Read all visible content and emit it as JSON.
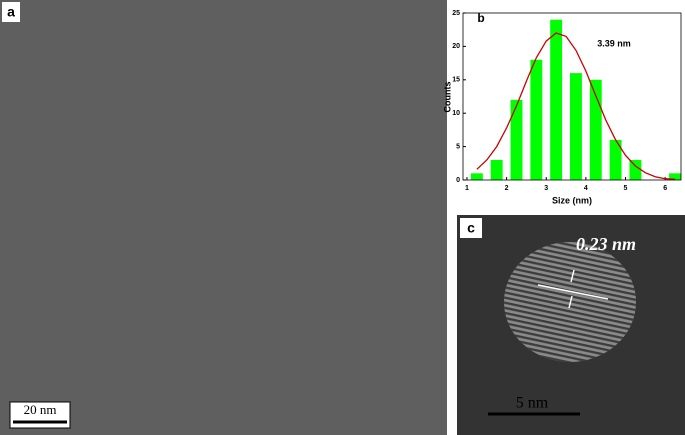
{
  "panel_a": {
    "label": "a",
    "scale_bar": "20 nm"
  },
  "panel_c": {
    "label": "c",
    "spacing": "0.23 nm",
    "scale_bar": "5 nm"
  },
  "chart_data": {
    "type": "histogram",
    "label": "b",
    "annotation": "3.39 nm",
    "xlabel": "Size (nm)",
    "ylabel": "Counts",
    "bins": [
      1,
      1.5,
      2,
      2.5,
      3,
      3.5,
      4,
      4.5,
      5,
      5.5,
      6,
      6.5
    ],
    "counts": [
      1,
      3,
      12,
      18,
      24,
      16,
      15,
      6,
      3,
      0,
      1
    ],
    "color": "#00ff00",
    "fit": {
      "color": "#cc0000",
      "x": [
        1.25,
        1.5,
        1.75,
        2,
        2.25,
        2.5,
        2.75,
        3,
        3.25,
        3.5,
        3.75,
        4,
        4.25,
        4.5,
        4.75,
        5,
        5.25,
        5.5,
        5.75,
        6,
        6.25
      ],
      "values": [
        1.6,
        3.0,
        5.0,
        7.8,
        11.1,
        14.8,
        18.3,
        20.8,
        22.0,
        21.5,
        19.4,
        16.3,
        12.6,
        9.0,
        6.0,
        3.7,
        2.1,
        1.1,
        0.5,
        0.2,
        0.1
      ]
    },
    "xlim": [
      0.9,
      6.4
    ],
    "xticks": [
      1,
      2,
      3,
      4,
      5,
      6
    ],
    "ylim": [
      0,
      25
    ],
    "yticks": [
      0,
      5,
      10,
      15,
      20,
      25
    ]
  }
}
